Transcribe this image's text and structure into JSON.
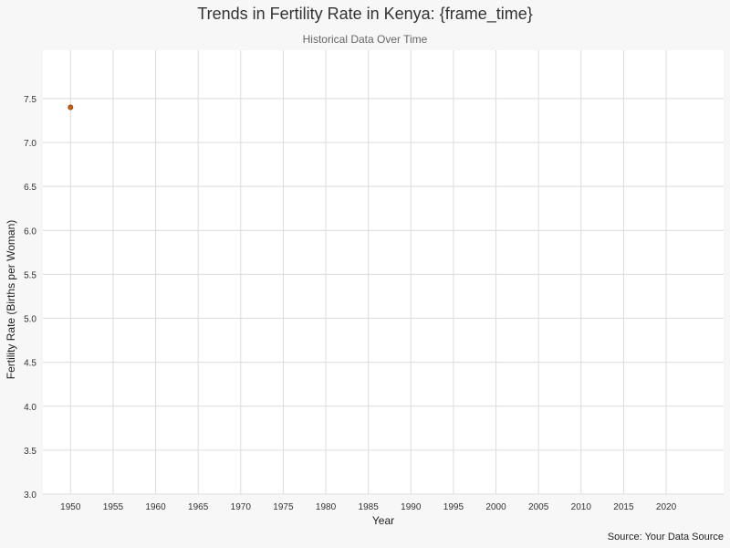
{
  "chart_data": {
    "type": "scatter",
    "title": "Trends in Fertility Rate in Kenya: {frame_time}",
    "subtitle": "Historical Data Over Time",
    "xlabel": "Year",
    "ylabel": "Fertility Rate (Births per Woman)",
    "caption": "Source: Your Data Source",
    "xlim": [
      1946.75,
      2026.75
    ],
    "ylim": [
      3.0,
      8.05
    ],
    "x_ticks": [
      1950,
      1955,
      1960,
      1965,
      1970,
      1975,
      1980,
      1985,
      1990,
      1995,
      2000,
      2005,
      2010,
      2015,
      2020
    ],
    "y_ticks": [
      3.0,
      3.5,
      4.0,
      4.5,
      5.0,
      5.5,
      6.0,
      6.5,
      7.0,
      7.5
    ],
    "grid": true,
    "points": [
      {
        "x": 1950,
        "y": 7.4
      }
    ],
    "point_color": "#d55e00",
    "point_outline": "#8b4513",
    "panel_color": "#ffffff",
    "grid_color": "#dcdcdc"
  }
}
